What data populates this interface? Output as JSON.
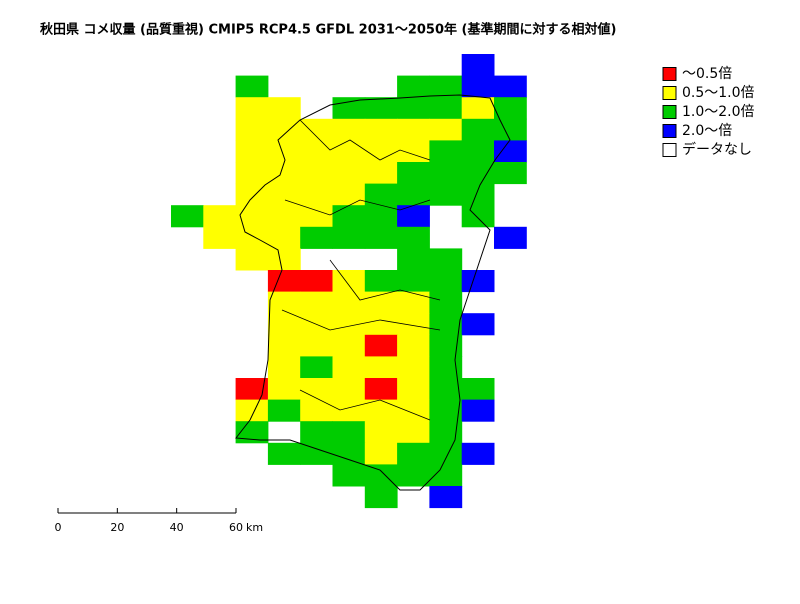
{
  "title": "秋田県 コメ収量 (品質重視) CMIP5 RCP4.5 GFDL 2031～2050年 (基準期間に対する相対値)",
  "legend": [
    {
      "label": "～0.5倍",
      "color": "#ff0000"
    },
    {
      "label": "0.5～1.0倍",
      "color": "#ffff00"
    },
    {
      "label": "1.0～2.0倍",
      "color": "#00cc00"
    },
    {
      "label": "2.0～倍",
      "color": "#0000ff"
    },
    {
      "label": "データなし",
      "color": "#ffffff"
    }
  ],
  "scale_bar": {
    "ticks": [
      0,
      20,
      40,
      60
    ],
    "unit": "km"
  }
}
